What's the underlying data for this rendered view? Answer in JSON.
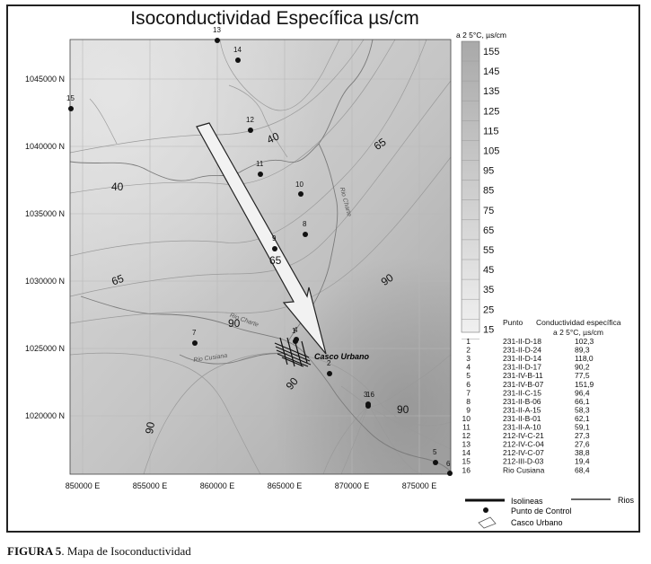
{
  "title": "Isoconductividad Específica µs/cm",
  "caption": {
    "figure": "FIGURA 5",
    "text": ". Mapa de Isoconductividad"
  },
  "map": {
    "y_ticks": [
      "1045000 N",
      "1040000 N",
      "1035000 N",
      "1030000 N",
      "1025000 N",
      "1020000 N"
    ],
    "x_ticks": [
      "850000 E",
      "855000 E",
      "860000 E",
      "865000 E",
      "870000 E",
      "875000 E"
    ],
    "isoline_labels": [
      "40",
      "40",
      "65",
      "65",
      "65",
      "90",
      "90",
      "90",
      "90",
      "90"
    ],
    "place_label": "Casco Urbano",
    "river_labels": [
      "Rio Cusiana",
      "Rio Charte",
      "Rio Charte"
    ],
    "control_points": [
      "1",
      "2",
      "3",
      "4",
      "5",
      "6",
      "7",
      "8",
      "9",
      "10",
      "11",
      "12",
      "13",
      "14",
      "15",
      "16"
    ]
  },
  "scale_legend": {
    "title": "a 2 5°C, µs/cm",
    "values": [
      "155",
      "145",
      "135",
      "125",
      "115",
      "105",
      "95",
      "85",
      "75",
      "65",
      "55",
      "45",
      "35",
      "25",
      "15"
    ],
    "gradient_top": "#a9a9a9",
    "gradient_bottom": "#f0f0f0"
  },
  "table": {
    "header_punto": "Punto",
    "header_cond": "Conductividad específica",
    "header_cond_sub": "a 2 5°C, µs/cm",
    "rows": [
      {
        "n": "1",
        "code": "231-II-D-18",
        "value": "102,3"
      },
      {
        "n": "2",
        "code": "231-II-D-24",
        "value": "89,3"
      },
      {
        "n": "3",
        "code": "231-II-D-14",
        "value": "118,0"
      },
      {
        "n": "4",
        "code": "231-II-D-17",
        "value": "90,2"
      },
      {
        "n": "5",
        "code": "231-IV-B-11",
        "value": "77,5"
      },
      {
        "n": "6",
        "code": "231-IV-B-07",
        "value": "151,9"
      },
      {
        "n": "7",
        "code": "231-II-C-15",
        "value": "96,4"
      },
      {
        "n": "8",
        "code": "231-II-B-06",
        "value": "66,1"
      },
      {
        "n": "9",
        "code": "231-II-A-15",
        "value": "58,3"
      },
      {
        "n": "10",
        "code": "231-II-B-01",
        "value": "62,1"
      },
      {
        "n": "11",
        "code": "231-II-A-10",
        "value": "59,1"
      },
      {
        "n": "12",
        "code": "212-IV-C-21",
        "value": "27,3"
      },
      {
        "n": "13",
        "code": "212-IV-C-04",
        "value": "27,6"
      },
      {
        "n": "14",
        "code": "212-IV-C-07",
        "value": "38,8"
      },
      {
        "n": "15",
        "code": "212-III-D-03",
        "value": "19,4"
      },
      {
        "n": "16",
        "code": "Rio Cusiana",
        "value": "68,4"
      }
    ]
  },
  "legend": {
    "isolineas": "Isolineas",
    "rios": "Rios",
    "punto_control": "Punto de Control",
    "casco_urbano": "Casco Urbano"
  }
}
